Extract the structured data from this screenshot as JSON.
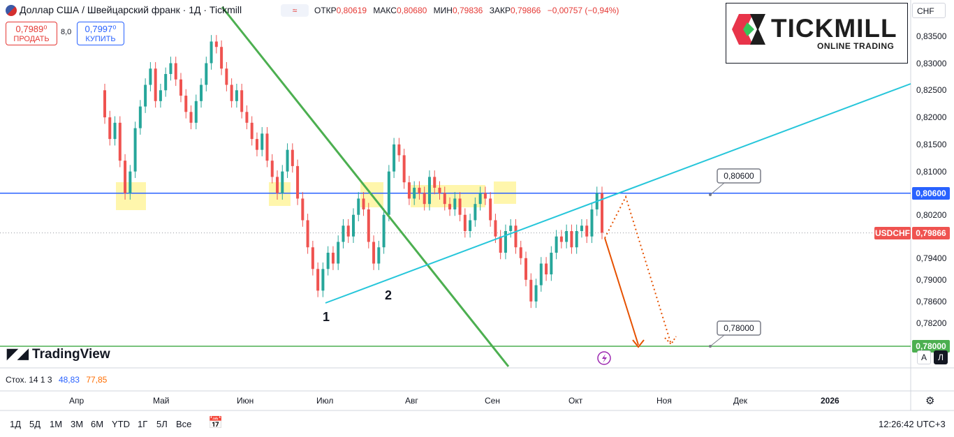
{
  "header": {
    "title": "Доллар США / Швейцарский франк · 1Д · Tickmill",
    "indicator_pill": "≈",
    "ohlc": [
      {
        "label": "ОТКР",
        "value": "0,80619"
      },
      {
        "label": "МАКС",
        "value": "0,80680"
      },
      {
        "label": "МИН",
        "value": "0,79836"
      },
      {
        "label": "ЗАКР",
        "value": "0,79866"
      },
      {
        "label": "",
        "value": "−0,00757 (−0,94%)"
      }
    ]
  },
  "trade": {
    "sell_price": "0,7989⁰",
    "sell_label": "ПРОДАТЬ",
    "spread": "8,0",
    "buy_price": "0,7997⁰",
    "buy_label": "КУПИТЬ"
  },
  "logo": {
    "word": "TICKMILL",
    "sub": "ONLINE TRADING"
  },
  "axis": {
    "currency": "CHF",
    "ticks": [
      "0,83500",
      "0,83000",
      "0,82500",
      "0,82000",
      "0,81500",
      "0,81000",
      "0,80200",
      "0,79400",
      "0,79000",
      "0,78600",
      "0,78200"
    ],
    "level_label": "0,80600",
    "price_tag_symbol": "USDCHF",
    "price_tag_value": "0,79866",
    "bottom_label": "0,78000"
  },
  "annotations": {
    "callout_upper": "0,80600",
    "callout_lower": "0,78000",
    "point_1": "1",
    "point_2": "2"
  },
  "xaxis": [
    "Апр",
    "Май",
    "Июн",
    "Июл",
    "Авг",
    "Сен",
    "Окт",
    "Ноя",
    "Дек",
    "2026"
  ],
  "indicator": {
    "name": "Стох. 14 1 3",
    "k": "48,83",
    "d": "77,85"
  },
  "bottom_bar": {
    "timeframes": [
      "1Д",
      "5Д",
      "1М",
      "3М",
      "6М",
      "YTD",
      "1Г",
      "5Л",
      "Все"
    ],
    "clock": "12:26:42 UTC+3",
    "auto_btn": "A",
    "log_btn": "Л"
  },
  "brand": {
    "tradingview": "TradingView"
  },
  "colors": {
    "up": "#26a69a",
    "down": "#ef5350",
    "support": "#4caf50",
    "trend": "#26c6da",
    "level": "#2962ff",
    "projection": "#e65100",
    "highlight": "#fff59d"
  },
  "chart_data": {
    "type": "candlestick",
    "symbol": "USDCHF",
    "timeframe": "1Д",
    "ylim": [
      0.7776,
      0.8378
    ],
    "horizontal_levels": [
      0.806,
      0.78
    ],
    "last_close": 0.79866,
    "x": [
      "Апр",
      "Май",
      "Июн",
      "Июл",
      "Авг",
      "Сен",
      "Окт",
      "Ноя",
      "Дек",
      "2026"
    ],
    "closes": [
      0.82,
      0.816,
      0.819,
      0.812,
      0.806,
      0.81,
      0.818,
      0.822,
      0.826,
      0.829,
      0.823,
      0.825,
      0.828,
      0.83,
      0.827,
      0.824,
      0.821,
      0.819,
      0.823,
      0.826,
      0.83,
      0.834,
      0.833,
      0.829,
      0.826,
      0.823,
      0.825,
      0.821,
      0.819,
      0.816,
      0.814,
      0.817,
      0.812,
      0.809,
      0.806,
      0.81,
      0.814,
      0.811,
      0.805,
      0.801,
      0.796,
      0.792,
      0.788,
      0.792,
      0.795,
      0.793,
      0.797,
      0.8,
      0.798,
      0.802,
      0.805,
      0.803,
      0.797,
      0.793,
      0.796,
      0.802,
      0.81,
      0.815,
      0.813,
      0.808,
      0.805,
      0.807,
      0.806,
      0.804,
      0.809,
      0.807,
      0.806,
      0.804,
      0.803,
      0.805,
      0.802,
      0.799,
      0.801,
      0.804,
      0.806,
      0.805,
      0.801,
      0.798,
      0.795,
      0.799,
      0.8,
      0.796,
      0.794,
      0.79,
      0.786,
      0.789,
      0.793,
      0.791,
      0.795,
      0.798,
      0.797,
      0.799,
      0.796,
      0.799,
      0.8,
      0.798,
      0.803,
      0.806,
      0.7987
    ]
  }
}
